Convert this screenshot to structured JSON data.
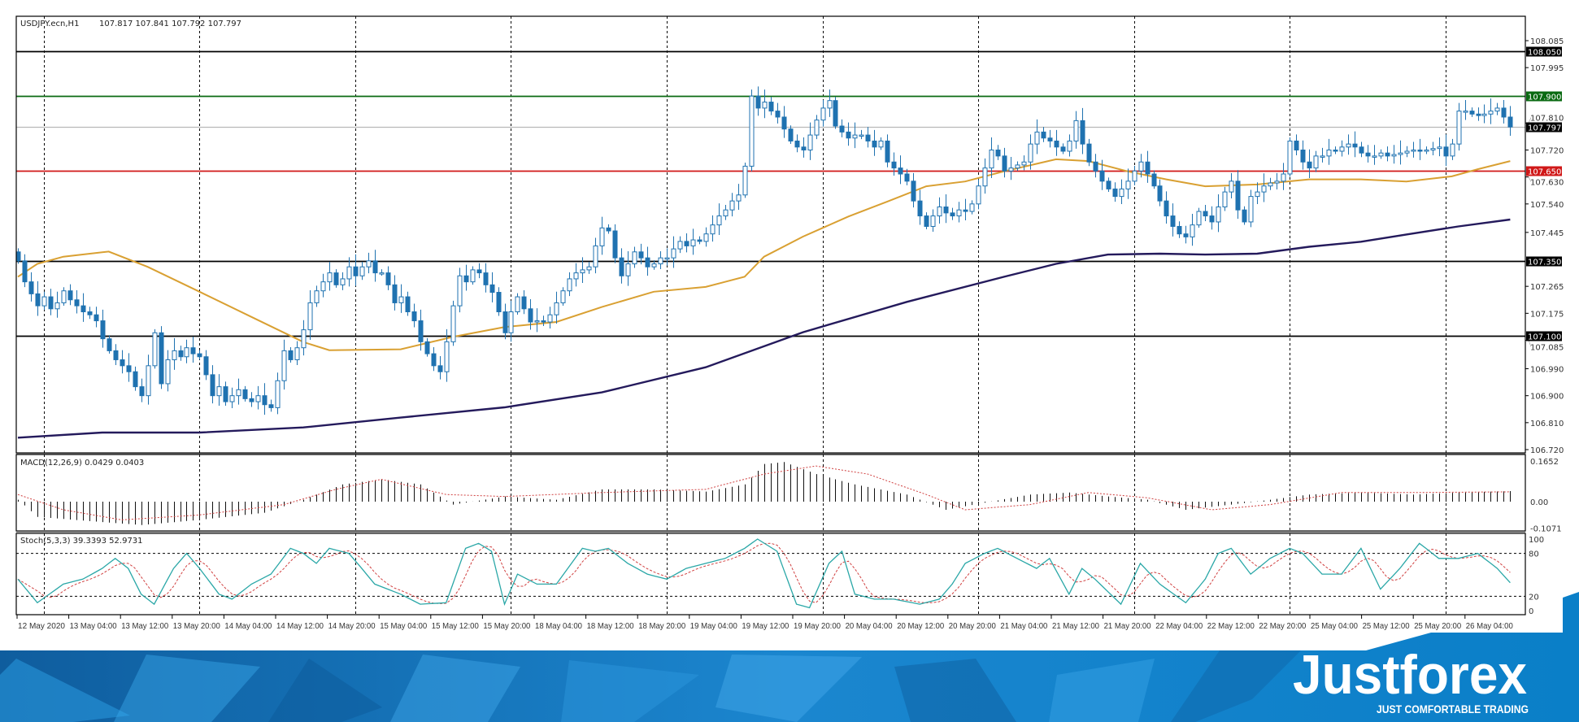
{
  "header": {
    "symbol": "USDJPY.ecn,H1",
    "ohlc": "107.817 107.841 107.792 107.797"
  },
  "chart_data": {
    "type": "candlestick",
    "symbol": "USDJPY.ecn",
    "timeframe": "H1",
    "ylim": [
      106.72,
      108.085
    ],
    "grid": "vertical dashed",
    "colors": {
      "candle": "#1f72b0",
      "ma_fast": "#d9a032",
      "ma_slow": "#241a5c",
      "macd_signal": "#d04040",
      "stoch_main": "#2aa7a7",
      "stoch_signal": "#d04040"
    },
    "close": [
      107.35,
      107.28,
      107.24,
      107.2,
      107.23,
      107.19,
      107.21,
      107.25,
      107.22,
      107.2,
      107.18,
      107.17,
      107.15,
      107.09,
      107.05,
      107.02,
      107.0,
      106.98,
      106.93,
      106.9,
      107.0,
      107.11,
      106.94,
      107.02,
      107.05,
      107.03,
      107.06,
      107.04,
      107.03,
      106.97,
      106.9,
      106.93,
      106.88,
      106.9,
      106.92,
      106.89,
      106.88,
      106.9,
      106.87,
      106.86,
      106.95,
      107.05,
      107.02,
      107.06,
      107.12,
      107.21,
      107.25,
      107.28,
      107.31,
      107.27,
      107.29,
      107.33,
      107.3,
      107.33,
      107.35,
      107.31,
      107.31,
      107.27,
      107.21,
      107.23,
      107.18,
      107.15,
      107.08,
      107.04,
      107.0,
      106.98,
      107.08,
      107.2,
      107.3,
      107.28,
      107.32,
      107.31,
      107.27,
      107.245,
      107.18,
      107.11,
      107.18,
      107.23,
      107.19,
      107.146,
      107.15,
      107.146,
      107.17,
      107.21,
      107.25,
      107.29,
      107.31,
      107.32,
      107.33,
      107.4,
      107.46,
      107.45,
      107.36,
      107.3,
      107.34,
      107.38,
      107.36,
      107.33,
      107.34,
      107.36,
      107.36,
      107.39,
      107.415,
      107.4,
      107.42,
      107.415,
      107.44,
      107.47,
      107.5,
      107.52,
      107.55,
      107.57,
      107.666,
      107.9,
      107.86,
      107.88,
      107.85,
      107.83,
      107.79,
      107.75,
      107.73,
      107.72,
      107.77,
      107.82,
      107.86,
      107.885,
      107.8,
      107.78,
      107.76,
      107.77,
      107.77,
      107.75,
      107.73,
      107.75,
      107.68,
      107.66,
      107.64,
      107.616,
      107.55,
      107.5,
      107.465,
      107.5,
      107.53,
      107.51,
      107.5,
      107.52,
      107.515,
      107.54,
      107.6,
      107.66,
      107.72,
      107.7,
      107.65,
      107.66,
      107.67,
      107.68,
      107.74,
      107.78,
      107.76,
      107.75,
      107.73,
      107.716,
      107.75,
      107.818,
      107.74,
      107.68,
      107.65,
      107.616,
      107.59,
      107.565,
      107.59,
      107.616,
      107.65,
      107.68,
      107.64,
      107.6,
      107.55,
      107.5,
      107.465,
      107.44,
      107.43,
      107.47,
      107.515,
      107.5,
      107.48,
      107.53,
      107.58,
      107.616,
      107.52,
      107.48,
      107.565,
      107.58,
      107.6,
      107.61,
      107.616,
      107.64,
      107.75,
      107.72,
      107.68,
      107.66,
      107.7,
      107.7,
      107.72,
      107.716,
      107.73,
      107.74,
      107.73,
      107.71,
      107.7,
      107.7,
      107.71,
      107.7,
      107.705,
      107.71,
      107.716,
      107.72,
      107.716,
      107.72,
      107.725,
      107.73,
      107.7,
      107.74,
      107.85,
      107.85,
      107.84,
      107.835,
      107.84,
      107.85,
      107.86,
      107.83,
      107.797
    ],
    "ma_fast": [
      [
        0,
        107.297
      ],
      [
        3,
        107.34
      ],
      [
        7,
        107.364
      ],
      [
        14,
        107.381
      ],
      [
        20,
        107.33
      ],
      [
        28,
        107.247
      ],
      [
        36,
        107.163
      ],
      [
        44,
        107.079
      ],
      [
        48,
        107.052
      ],
      [
        59,
        107.055
      ],
      [
        67,
        107.096
      ],
      [
        75,
        107.129
      ],
      [
        83,
        107.146
      ],
      [
        90,
        107.196
      ],
      [
        98,
        107.247
      ],
      [
        106,
        107.263
      ],
      [
        112,
        107.297
      ],
      [
        115,
        107.364
      ],
      [
        121,
        107.431
      ],
      [
        128,
        107.498
      ],
      [
        134,
        107.548
      ],
      [
        140,
        107.599
      ],
      [
        146,
        107.615
      ],
      [
        152,
        107.649
      ],
      [
        160,
        107.689
      ],
      [
        165,
        107.683
      ],
      [
        171,
        107.649
      ],
      [
        177,
        107.622
      ],
      [
        183,
        107.599
      ],
      [
        191,
        107.605
      ],
      [
        199,
        107.622
      ],
      [
        207,
        107.622
      ],
      [
        214,
        107.615
      ],
      [
        221,
        107.632
      ],
      [
        225,
        107.656
      ],
      [
        230,
        107.683
      ]
    ],
    "ma_slow": [
      [
        0,
        106.76
      ],
      [
        13,
        106.777
      ],
      [
        28,
        106.777
      ],
      [
        44,
        106.794
      ],
      [
        59,
        106.827
      ],
      [
        75,
        106.861
      ],
      [
        90,
        106.911
      ],
      [
        106,
        106.995
      ],
      [
        121,
        107.112
      ],
      [
        137,
        107.213
      ],
      [
        152,
        107.297
      ],
      [
        160,
        107.34
      ],
      [
        168,
        107.371
      ],
      [
        176,
        107.374
      ],
      [
        183,
        107.371
      ],
      [
        191,
        107.374
      ],
      [
        199,
        107.397
      ],
      [
        207,
        107.414
      ],
      [
        214,
        107.438
      ],
      [
        222,
        107.465
      ],
      [
        230,
        107.488
      ]
    ],
    "levels": [
      {
        "price": "108.050",
        "color": "#000000"
      },
      {
        "price": "107.900",
        "color": "#0a6a12"
      },
      {
        "price": "107.797",
        "color": "#b8b8b8",
        "label_bg": "#000000"
      },
      {
        "price": "107.650",
        "color": "#d01818"
      },
      {
        "price": "107.350",
        "color": "#000000"
      },
      {
        "price": "107.100",
        "color": "#000000"
      }
    ],
    "price_ticks": [
      "108.085",
      "107.995",
      "107.810",
      "107.720",
      "107.630",
      "107.540",
      "107.445",
      "107.265",
      "107.175",
      "107.085",
      "106.990",
      "106.900",
      "106.810",
      "106.720"
    ],
    "x_labels": [
      "12 May 2020",
      "13 May 04:00",
      "13 May 12:00",
      "13 May 20:00",
      "14 May 04:00",
      "14 May 12:00",
      "14 May 20:00",
      "15 May 04:00",
      "15 May 12:00",
      "15 May 20:00",
      "18 May 04:00",
      "18 May 12:00",
      "18 May 20:00",
      "19 May 04:00",
      "19 May 12:00",
      "19 May 20:00",
      "20 May 04:00",
      "20 May 12:00",
      "20 May 20:00",
      "21 May 04:00",
      "21 May 12:00",
      "21 May 20:00",
      "22 May 04:00",
      "22 May 12:00",
      "22 May 20:00",
      "25 May 04:00",
      "25 May 12:00",
      "25 May 20:00",
      "26 May 04:00"
    ]
  },
  "macd": {
    "label": "MACD(12,26,9) 0.0429 0.0403",
    "ticks": [
      "0.1652",
      "0.00",
      "-0.1071"
    ],
    "main": [
      [
        0,
        0.008
      ],
      [
        3,
        -0.062
      ],
      [
        13,
        -0.083
      ],
      [
        19,
        -0.095
      ],
      [
        28,
        -0.074
      ],
      [
        38,
        -0.045
      ],
      [
        44,
        0.008
      ],
      [
        50,
        0.07
      ],
      [
        56,
        0.091
      ],
      [
        62,
        0.07
      ],
      [
        67,
        -0.012
      ],
      [
        75,
        0.021
      ],
      [
        83,
        0.008
      ],
      [
        90,
        0.05
      ],
      [
        98,
        0.05
      ],
      [
        106,
        0.041
      ],
      [
        112,
        0.07
      ],
      [
        115,
        0.153
      ],
      [
        118,
        0.161
      ],
      [
        123,
        0.112
      ],
      [
        129,
        0.07
      ],
      [
        137,
        0.029
      ],
      [
        143,
        -0.033
      ],
      [
        149,
        -0.004
      ],
      [
        156,
        0.029
      ],
      [
        162,
        0.037
      ],
      [
        168,
        0.021
      ],
      [
        174,
        0.008
      ],
      [
        180,
        -0.033
      ],
      [
        187,
        -0.012
      ],
      [
        193,
        0.008
      ],
      [
        199,
        0.029
      ],
      [
        207,
        0.037
      ],
      [
        215,
        0.029
      ],
      [
        222,
        0.037
      ],
      [
        230,
        0.043
      ]
    ],
    "signal": [
      [
        0,
        0.029
      ],
      [
        7,
        -0.033
      ],
      [
        16,
        -0.074
      ],
      [
        28,
        -0.054
      ],
      [
        41,
        -0.012
      ],
      [
        49,
        0.05
      ],
      [
        56,
        0.091
      ],
      [
        66,
        0.029
      ],
      [
        75,
        0.021
      ],
      [
        90,
        0.037
      ],
      [
        106,
        0.05
      ],
      [
        115,
        0.112
      ],
      [
        123,
        0.145
      ],
      [
        131,
        0.112
      ],
      [
        140,
        0.029
      ],
      [
        146,
        -0.033
      ],
      [
        156,
        -0.012
      ],
      [
        165,
        0.037
      ],
      [
        174,
        0.016
      ],
      [
        184,
        -0.033
      ],
      [
        193,
        -0.012
      ],
      [
        204,
        0.037
      ],
      [
        215,
        0.037
      ],
      [
        230,
        0.04
      ]
    ]
  },
  "stoch": {
    "label": "Stoch(5,3,3) 39.3393 52.9731",
    "ticks": [
      "100",
      "80",
      "20",
      "0"
    ],
    "main": [
      [
        0,
        44
      ],
      [
        3,
        11
      ],
      [
        7,
        37
      ],
      [
        10,
        44
      ],
      [
        13,
        59
      ],
      [
        15,
        73
      ],
      [
        17,
        59
      ],
      [
        19,
        23
      ],
      [
        21,
        9
      ],
      [
        24,
        59
      ],
      [
        26,
        80
      ],
      [
        28,
        59
      ],
      [
        31,
        23
      ],
      [
        33,
        16
      ],
      [
        36,
        37
      ],
      [
        39,
        51
      ],
      [
        42,
        87
      ],
      [
        44,
        80
      ],
      [
        46,
        66
      ],
      [
        48,
        87
      ],
      [
        51,
        80
      ],
      [
        53,
        59
      ],
      [
        55,
        37
      ],
      [
        59,
        23
      ],
      [
        62,
        9
      ],
      [
        66,
        11
      ],
      [
        69,
        87
      ],
      [
        71,
        94
      ],
      [
        73,
        83
      ],
      [
        75,
        9
      ],
      [
        77,
        51
      ],
      [
        80,
        37
      ],
      [
        83,
        37
      ],
      [
        87,
        87
      ],
      [
        89,
        83
      ],
      [
        91,
        87
      ],
      [
        94,
        66
      ],
      [
        97,
        51
      ],
      [
        100,
        44
      ],
      [
        103,
        59
      ],
      [
        106,
        66
      ],
      [
        109,
        73
      ],
      [
        112,
        87
      ],
      [
        114,
        100
      ],
      [
        117,
        83
      ],
      [
        120,
        9
      ],
      [
        122,
        4
      ],
      [
        125,
        66
      ],
      [
        127,
        83
      ],
      [
        129,
        23
      ],
      [
        132,
        16
      ],
      [
        135,
        16
      ],
      [
        139,
        9
      ],
      [
        142,
        16
      ],
      [
        144,
        37
      ],
      [
        146,
        66
      ],
      [
        149,
        80
      ],
      [
        151,
        87
      ],
      [
        154,
        73
      ],
      [
        157,
        59
      ],
      [
        159,
        73
      ],
      [
        162,
        23
      ],
      [
        164,
        59
      ],
      [
        166,
        44
      ],
      [
        170,
        9
      ],
      [
        173,
        66
      ],
      [
        176,
        37
      ],
      [
        180,
        11
      ],
      [
        183,
        44
      ],
      [
        185,
        80
      ],
      [
        187,
        87
      ],
      [
        190,
        51
      ],
      [
        193,
        73
      ],
      [
        196,
        87
      ],
      [
        198,
        80
      ],
      [
        201,
        51
      ],
      [
        204,
        51
      ],
      [
        207,
        87
      ],
      [
        210,
        30
      ],
      [
        213,
        59
      ],
      [
        216,
        94
      ],
      [
        219,
        73
      ],
      [
        222,
        73
      ],
      [
        225,
        80
      ],
      [
        228,
        59
      ],
      [
        230,
        39
      ]
    ]
  },
  "branding": {
    "logo": "Justforex",
    "tagline": "JUST COMFORTABLE TRADING"
  }
}
